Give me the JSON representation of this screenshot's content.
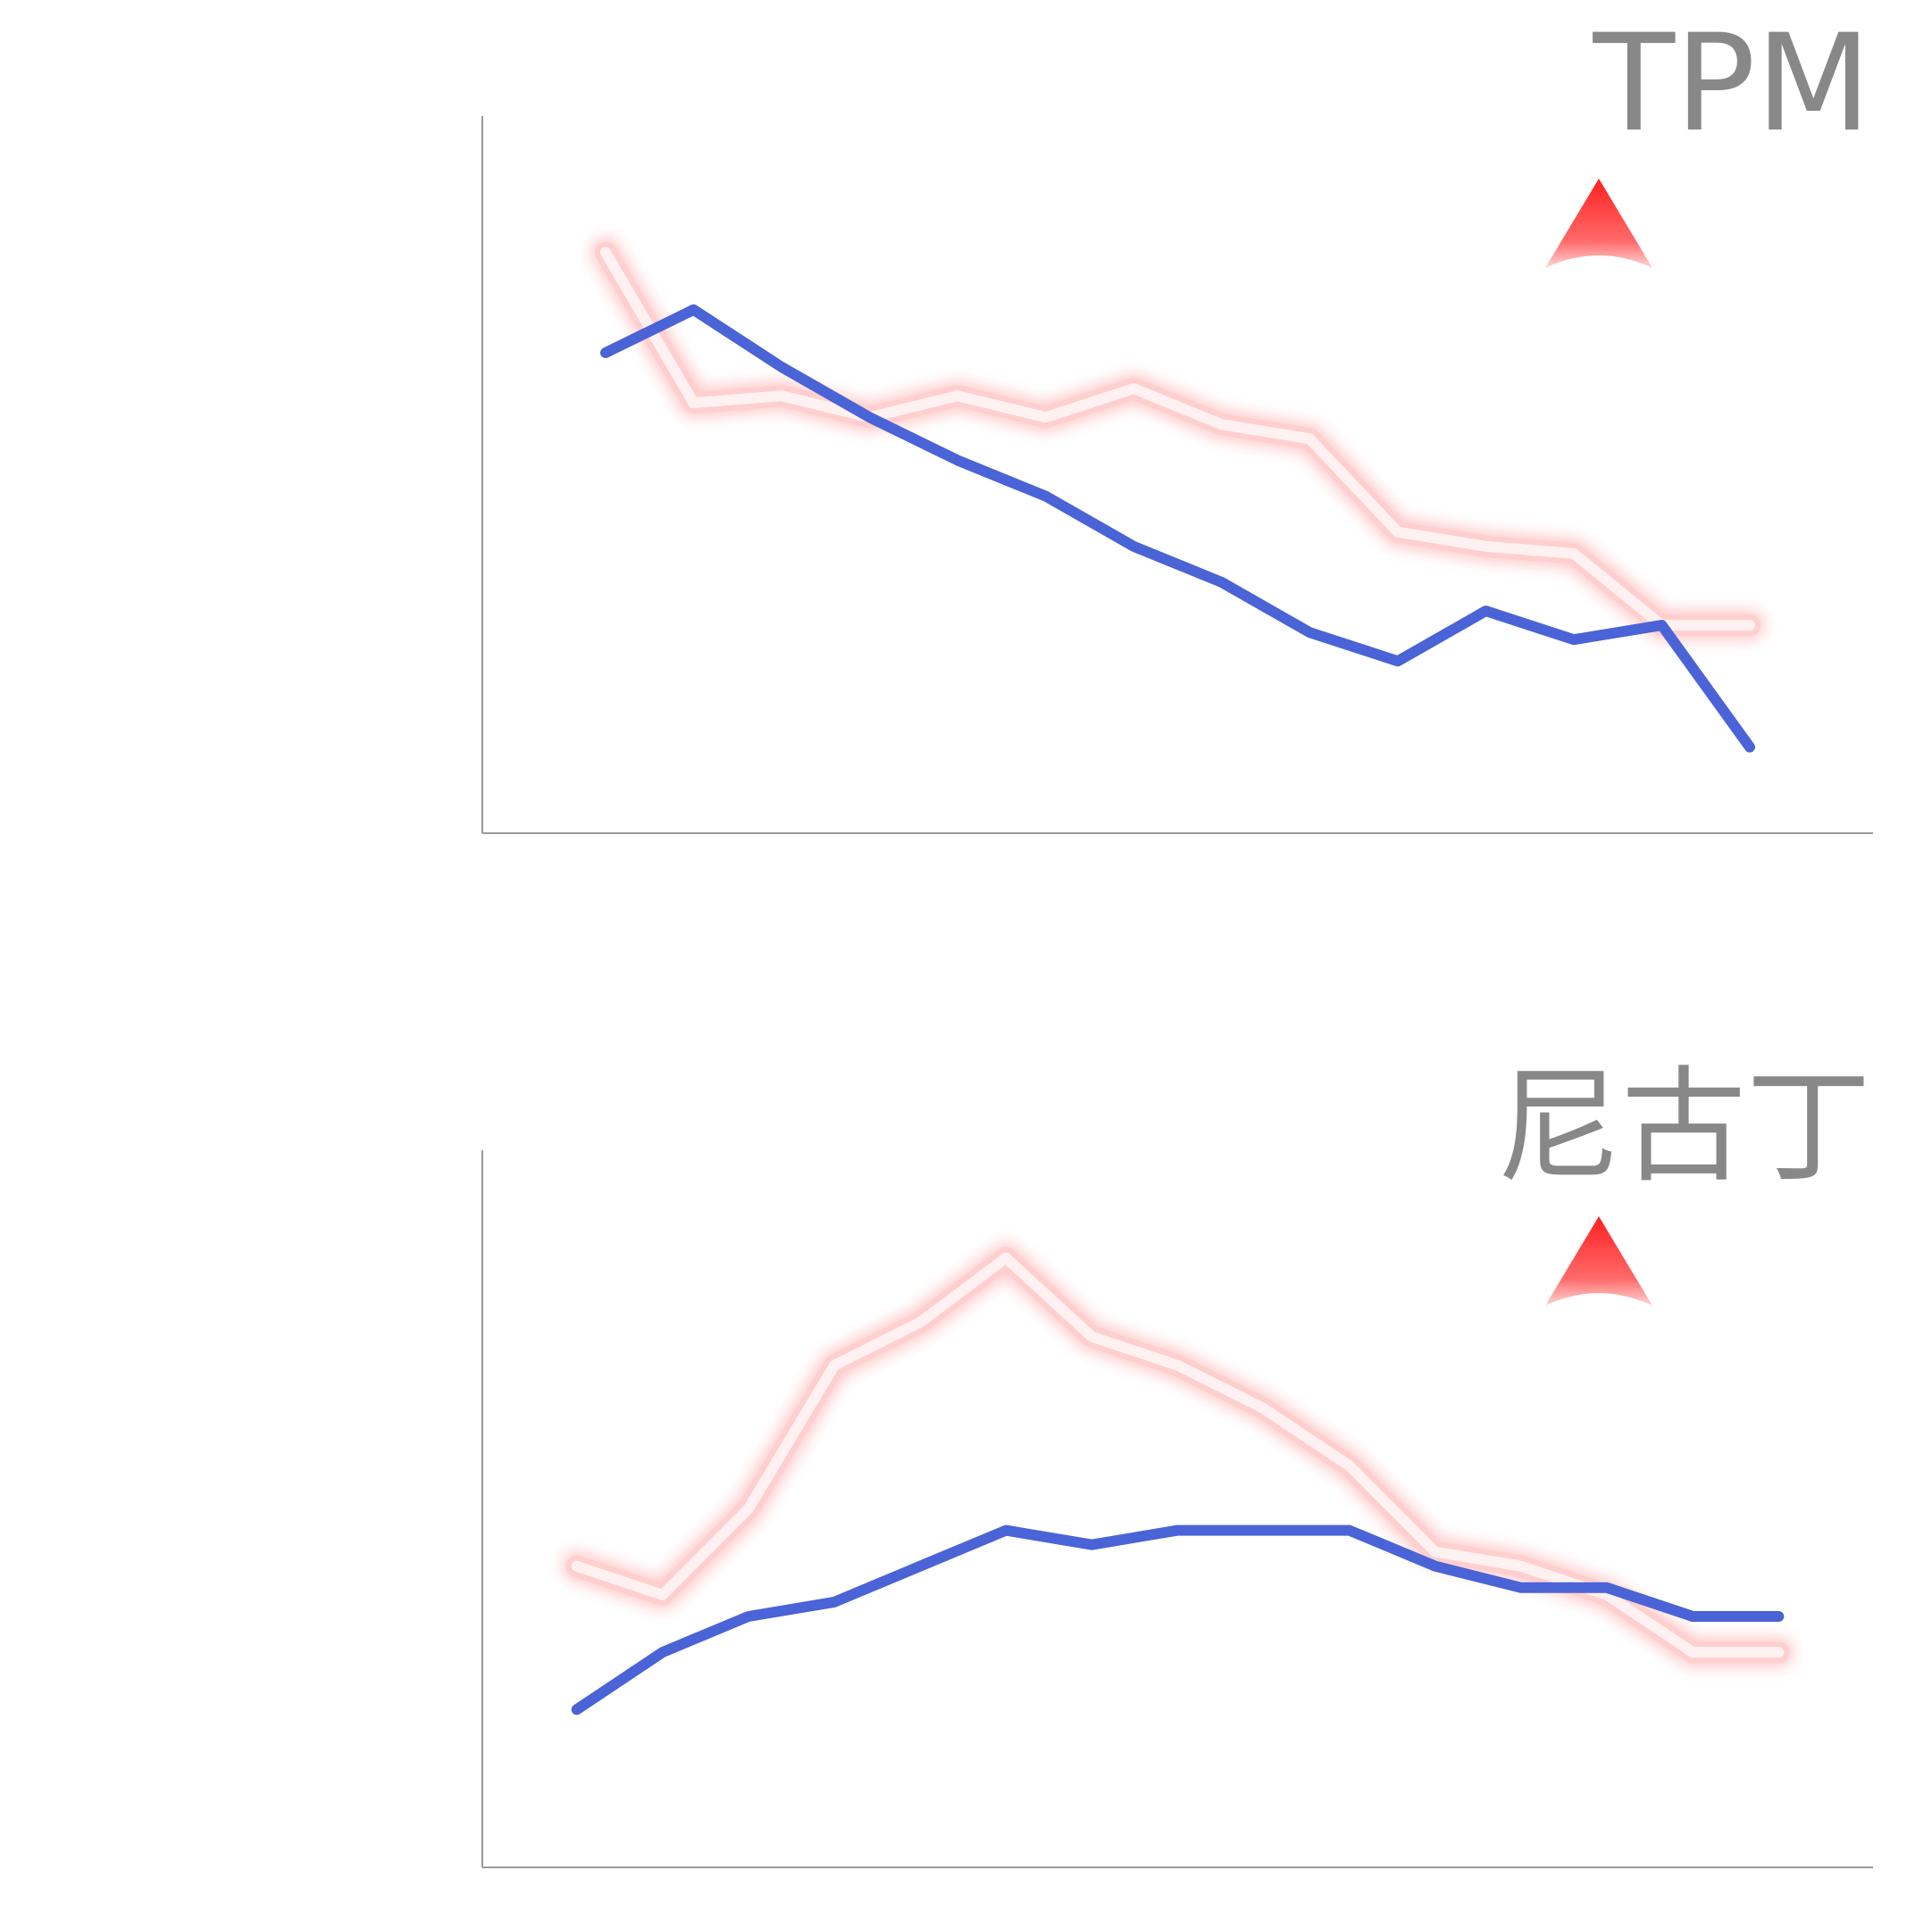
{
  "colors": {
    "series_a": "#4a63d6",
    "series_b": "#fff1f1",
    "series_b_glow": "#ff6a6a",
    "axis": "#9a9a9a",
    "title": "#888888",
    "marker": "#ff2a2a"
  },
  "chart_data": [
    {
      "type": "line",
      "title": "TPM",
      "marker_icon": "red-up-triangle-icon",
      "marker_direction": "up",
      "x": [
        1,
        2,
        3,
        4,
        5,
        6,
        7,
        8,
        9,
        10,
        11,
        12,
        13,
        14
      ],
      "xlim": [
        -0.4,
        15.4
      ],
      "ylim": [
        0,
        100
      ],
      "grid": false,
      "tick_labels_visible": false,
      "series": [
        {
          "key": "a",
          "values": [
            67,
            73,
            65,
            58,
            52,
            47,
            40,
            35,
            28,
            24,
            31,
            27,
            29,
            12
          ]
        },
        {
          "key": "b",
          "values": [
            81,
            60,
            61,
            58,
            61,
            58,
            62,
            57,
            55,
            42,
            40,
            39,
            29,
            29
          ]
        }
      ]
    },
    {
      "type": "line",
      "title": "尼古丁",
      "marker_icon": "red-up-triangle-icon",
      "marker_direction": "up",
      "x": [
        1,
        2,
        3,
        4,
        5,
        6,
        7,
        8,
        9,
        10,
        11,
        12,
        13,
        14,
        15
      ],
      "xlim": [
        -0.1,
        16.1
      ],
      "ylim": [
        0,
        100
      ],
      "grid": false,
      "tick_labels_visible": false,
      "series": [
        {
          "key": "a",
          "values": [
            22,
            30,
            35,
            37,
            42,
            47,
            45,
            47,
            47,
            47,
            42,
            39,
            39,
            35,
            35
          ]
        },
        {
          "key": "b",
          "values": [
            42,
            38,
            50,
            70,
            76,
            85,
            74,
            70,
            64,
            56,
            44,
            42,
            38,
            30,
            30
          ]
        }
      ]
    }
  ]
}
